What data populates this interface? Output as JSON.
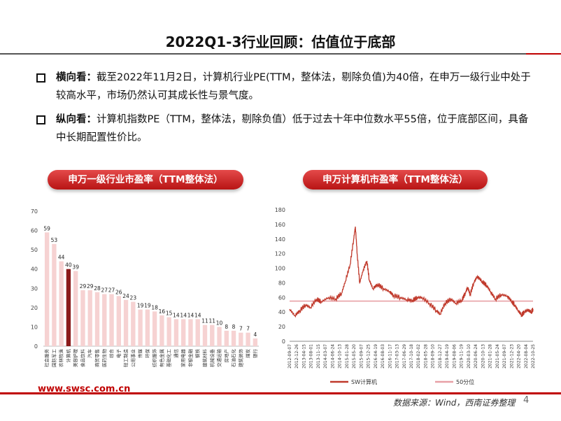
{
  "page": {
    "title": "2022Q1-3行业回顾：估值位于底部",
    "accent_color": "#c00000",
    "bullets": [
      {
        "lead": "横向看：",
        "text": "截至2022年11月2日，计算机行业PE(TTM，整体法，剔除负值)为40倍，在申万一级行业中处于较高水平，市场仍然认可其成长性与景气度。"
      },
      {
        "lead": "纵向看：",
        "text": "计算机指数PE（TTM，整体法，剔除负值）低于过去十年中位数水平55倍，位于底部区间，具备中长期配置性价比。"
      }
    ],
    "left_chart_title": "申万一级行业市盈率（TTM整体法）",
    "right_chart_title": "申万计算机市盈率（TTM整体法）",
    "footer_url": "www.swsc.com.cn",
    "footer_source": "数据来源：Wind，西南证券整理",
    "page_number": "4"
  },
  "chart_data": [
    {
      "type": "bar",
      "title": "申万一级行业市盈率（TTM整体法）",
      "ylim": [
        0,
        70
      ],
      "yticks": [
        0,
        10,
        20,
        30,
        40,
        50,
        60,
        70
      ],
      "highlight": "计算机",
      "highlight_color": "#8b1a1a",
      "bar_color": "#f6d2d2",
      "categories": [
        "社会服务",
        "国防军工",
        "农林牧渔",
        "计算机",
        "美容护理",
        "食品饮料",
        "汽车",
        "商贸零售",
        "医药生物",
        "综合",
        "电子",
        "轻工制造",
        "公用事业",
        "传媒",
        "环保",
        "纺织服饰",
        "有色金属",
        "基础化工",
        "通信",
        "家用电器",
        "非银金融",
        "钢铁",
        "建筑材料",
        "机械设备",
        "交通运输",
        "房地产",
        "石油石化",
        "建筑装饰",
        "煤炭",
        "银行"
      ],
      "values": [
        59,
        53,
        44,
        40,
        39,
        29,
        29,
        28,
        27,
        27,
        26,
        24,
        23,
        19,
        19,
        18,
        16,
        15,
        14,
        14,
        14,
        14,
        11,
        11,
        10,
        8,
        8,
        7,
        7,
        4
      ]
    },
    {
      "type": "line",
      "title": "申万计算机市盈率（TTM整体法）",
      "ylim": [
        0,
        180
      ],
      "yticks": [
        0,
        20,
        40,
        60,
        80,
        100,
        120,
        140,
        160,
        180
      ],
      "x_labels": [
        "2012-09-07",
        "2012-12-26",
        "2013-04-15",
        "2013-08-01",
        "2013-11-15",
        "2014-03-07",
        "2014-06-24",
        "2014-10-13",
        "2015-01-28",
        "2015-05-20",
        "2015-09-07",
        "2015-12-25",
        "2016-04-19",
        "2016-08-03",
        "2016-11-17",
        "2017-03-13",
        "2017-06-29",
        "2017-10-18",
        "2018-02-02",
        "2018-05-28",
        "2018-09-10",
        "2018-12-27",
        "2019-04-19",
        "2019-08-06",
        "2019-11-19",
        "2020-03-10",
        "2020-06-24",
        "2020-10-13",
        "2021-01-28",
        "2021-05-24",
        "2021-09-07",
        "2021-12-23",
        "2022-04-20",
        "2022-08-04",
        "2022-10-25"
      ],
      "x_range": [
        2012.68,
        2022.82
      ],
      "series": [
        {
          "name": "SW计算机",
          "color": "#c0392b",
          "points": [
            [
              2012.68,
              44
            ],
            [
              2012.9,
              35
            ],
            [
              2013.1,
              42
            ],
            [
              2013.35,
              50
            ],
            [
              2013.55,
              46
            ],
            [
              2013.8,
              58
            ],
            [
              2014.0,
              54
            ],
            [
              2014.3,
              60
            ],
            [
              2014.6,
              58
            ],
            [
              2014.85,
              66
            ],
            [
              2015.0,
              82
            ],
            [
              2015.2,
              105
            ],
            [
              2015.35,
              140
            ],
            [
              2015.42,
              157
            ],
            [
              2015.5,
              118
            ],
            [
              2015.6,
              80
            ],
            [
              2015.75,
              98
            ],
            [
              2015.9,
              110
            ],
            [
              2016.0,
              84
            ],
            [
              2016.15,
              72
            ],
            [
              2016.35,
              78
            ],
            [
              2016.6,
              72
            ],
            [
              2016.85,
              68
            ],
            [
              2017.0,
              63
            ],
            [
              2017.3,
              60
            ],
            [
              2017.55,
              57
            ],
            [
              2017.8,
              56
            ],
            [
              2018.0,
              60
            ],
            [
              2018.2,
              60
            ],
            [
              2018.5,
              52
            ],
            [
              2018.8,
              42
            ],
            [
              2018.95,
              37
            ],
            [
              2019.15,
              52
            ],
            [
              2019.4,
              58
            ],
            [
              2019.6,
              52
            ],
            [
              2019.85,
              56
            ],
            [
              2020.0,
              66
            ],
            [
              2020.1,
              74
            ],
            [
              2020.2,
              64
            ],
            [
              2020.35,
              80
            ],
            [
              2020.5,
              89
            ],
            [
              2020.7,
              82
            ],
            [
              2020.9,
              76
            ],
            [
              2021.05,
              68
            ],
            [
              2021.25,
              58
            ],
            [
              2021.5,
              64
            ],
            [
              2021.75,
              62
            ],
            [
              2021.95,
              54
            ],
            [
              2022.05,
              50
            ],
            [
              2022.2,
              42
            ],
            [
              2022.35,
              36
            ],
            [
              2022.45,
              40
            ],
            [
              2022.6,
              43
            ],
            [
              2022.75,
              40
            ],
            [
              2022.82,
              44
            ]
          ]
        },
        {
          "name": "50分位",
          "color": "#e8a0a6",
          "constant": 55
        }
      ]
    }
  ]
}
